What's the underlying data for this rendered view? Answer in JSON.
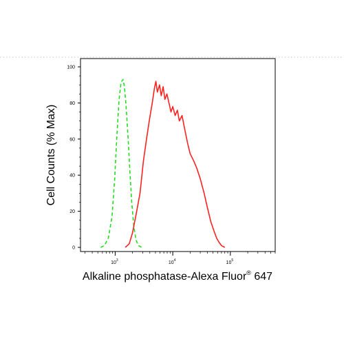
{
  "chart_data": {
    "type": "line",
    "xlabel_prefix": "Alkaline phosphatase-Alexa Fluor",
    "xlabel_sup": "®",
    "xlabel_suffix": " 647",
    "ylabel": "Cell Counts (% Max)",
    "xscale": "log",
    "xlim": [
      250,
      600000
    ],
    "ylim": [
      0,
      100
    ],
    "yticks": [
      "0",
      "20",
      "40",
      "60",
      "80",
      "100"
    ],
    "xticks": [
      {
        "value": 1000,
        "base": "10",
        "exp": "3"
      },
      {
        "value": 10000,
        "base": "10",
        "exp": "4"
      },
      {
        "value": 100000,
        "base": "10",
        "exp": "5"
      }
    ],
    "grid": false,
    "series": [
      {
        "style": "dashed",
        "color": "#22dd22",
        "points": [
          [
            560,
            0
          ],
          [
            650,
            1
          ],
          [
            760,
            5
          ],
          [
            880,
            17
          ],
          [
            980,
            38
          ],
          [
            1070,
            62
          ],
          [
            1170,
            82
          ],
          [
            1250,
            90
          ],
          [
            1300,
            92
          ],
          [
            1370,
            93
          ],
          [
            1450,
            89
          ],
          [
            1550,
            78
          ],
          [
            1680,
            60
          ],
          [
            1800,
            42
          ],
          [
            1930,
            26
          ],
          [
            2100,
            12
          ],
          [
            2300,
            4
          ],
          [
            2550,
            1
          ],
          [
            2900,
            0
          ]
        ]
      },
      {
        "style": "solid",
        "color": "#ff2020",
        "points": [
          [
            1500,
            0
          ],
          [
            1750,
            2
          ],
          [
            2000,
            8
          ],
          [
            2300,
            18
          ],
          [
            2700,
            30
          ],
          [
            3100,
            48
          ],
          [
            3500,
            60
          ],
          [
            3900,
            70
          ],
          [
            4400,
            80
          ],
          [
            4800,
            88
          ],
          [
            5100,
            92
          ],
          [
            5400,
            86
          ],
          [
            5900,
            90
          ],
          [
            6300,
            84
          ],
          [
            6800,
            89
          ],
          [
            7300,
            82
          ],
          [
            7900,
            85
          ],
          [
            8600,
            80
          ],
          [
            9300,
            75
          ],
          [
            10000,
            78
          ],
          [
            11000,
            73
          ],
          [
            12000,
            76
          ],
          [
            13000,
            70
          ],
          [
            14500,
            73
          ],
          [
            16000,
            66
          ],
          [
            18000,
            58
          ],
          [
            20000,
            52
          ],
          [
            23000,
            48
          ],
          [
            26000,
            44
          ],
          [
            30000,
            38
          ],
          [
            35000,
            30
          ],
          [
            40000,
            22
          ],
          [
            46000,
            14
          ],
          [
            52000,
            9
          ],
          [
            58000,
            5
          ],
          [
            63000,
            3
          ],
          [
            70000,
            1
          ],
          [
            80000,
            0
          ]
        ]
      }
    ]
  }
}
